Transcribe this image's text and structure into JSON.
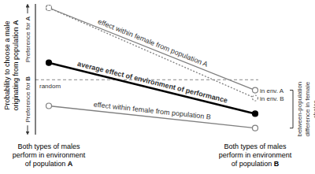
{
  "chart_data": {
    "type": "line",
    "y_label": "Probability to choose a male originating from population A",
    "categories": [
      "Both types of males perform in environment of population A",
      "Both types of males perform in environment of population B"
    ],
    "ylim": [
      0,
      1
    ],
    "tick_labels": "x",
    "series": [
      {
        "name": "effect within female from population A",
        "color": "#7f7f7f",
        "marker": "open_circle",
        "line_style": "solid",
        "values": [
          0.97,
          0.34
        ],
        "point_labels": [
          null,
          "in env. A"
        ]
      },
      {
        "color": "#7f7f7f",
        "marker": "open_circle",
        "line_style": "dotted",
        "values": [
          0.97,
          0.28
        ],
        "point_labels": [
          null,
          "in env. B"
        ]
      },
      {
        "name": "average effect of environment of performance",
        "color": "#000000",
        "marker": "filled_circle",
        "line_style": "solid",
        "values": [
          0.55,
          0.16
        ]
      },
      {
        "name": "effect within female from population B",
        "color": "#7f7f7f",
        "marker": "open_circle",
        "line_style": "solid",
        "values": [
          0.22,
          0.05
        ]
      }
    ],
    "reference_line": {
      "label": "random",
      "value": 0.42,
      "line_style": "dashed"
    },
    "annotations": [
      "Preference for A",
      "Preference for B",
      "between-population difference in female choice"
    ]
  }
}
